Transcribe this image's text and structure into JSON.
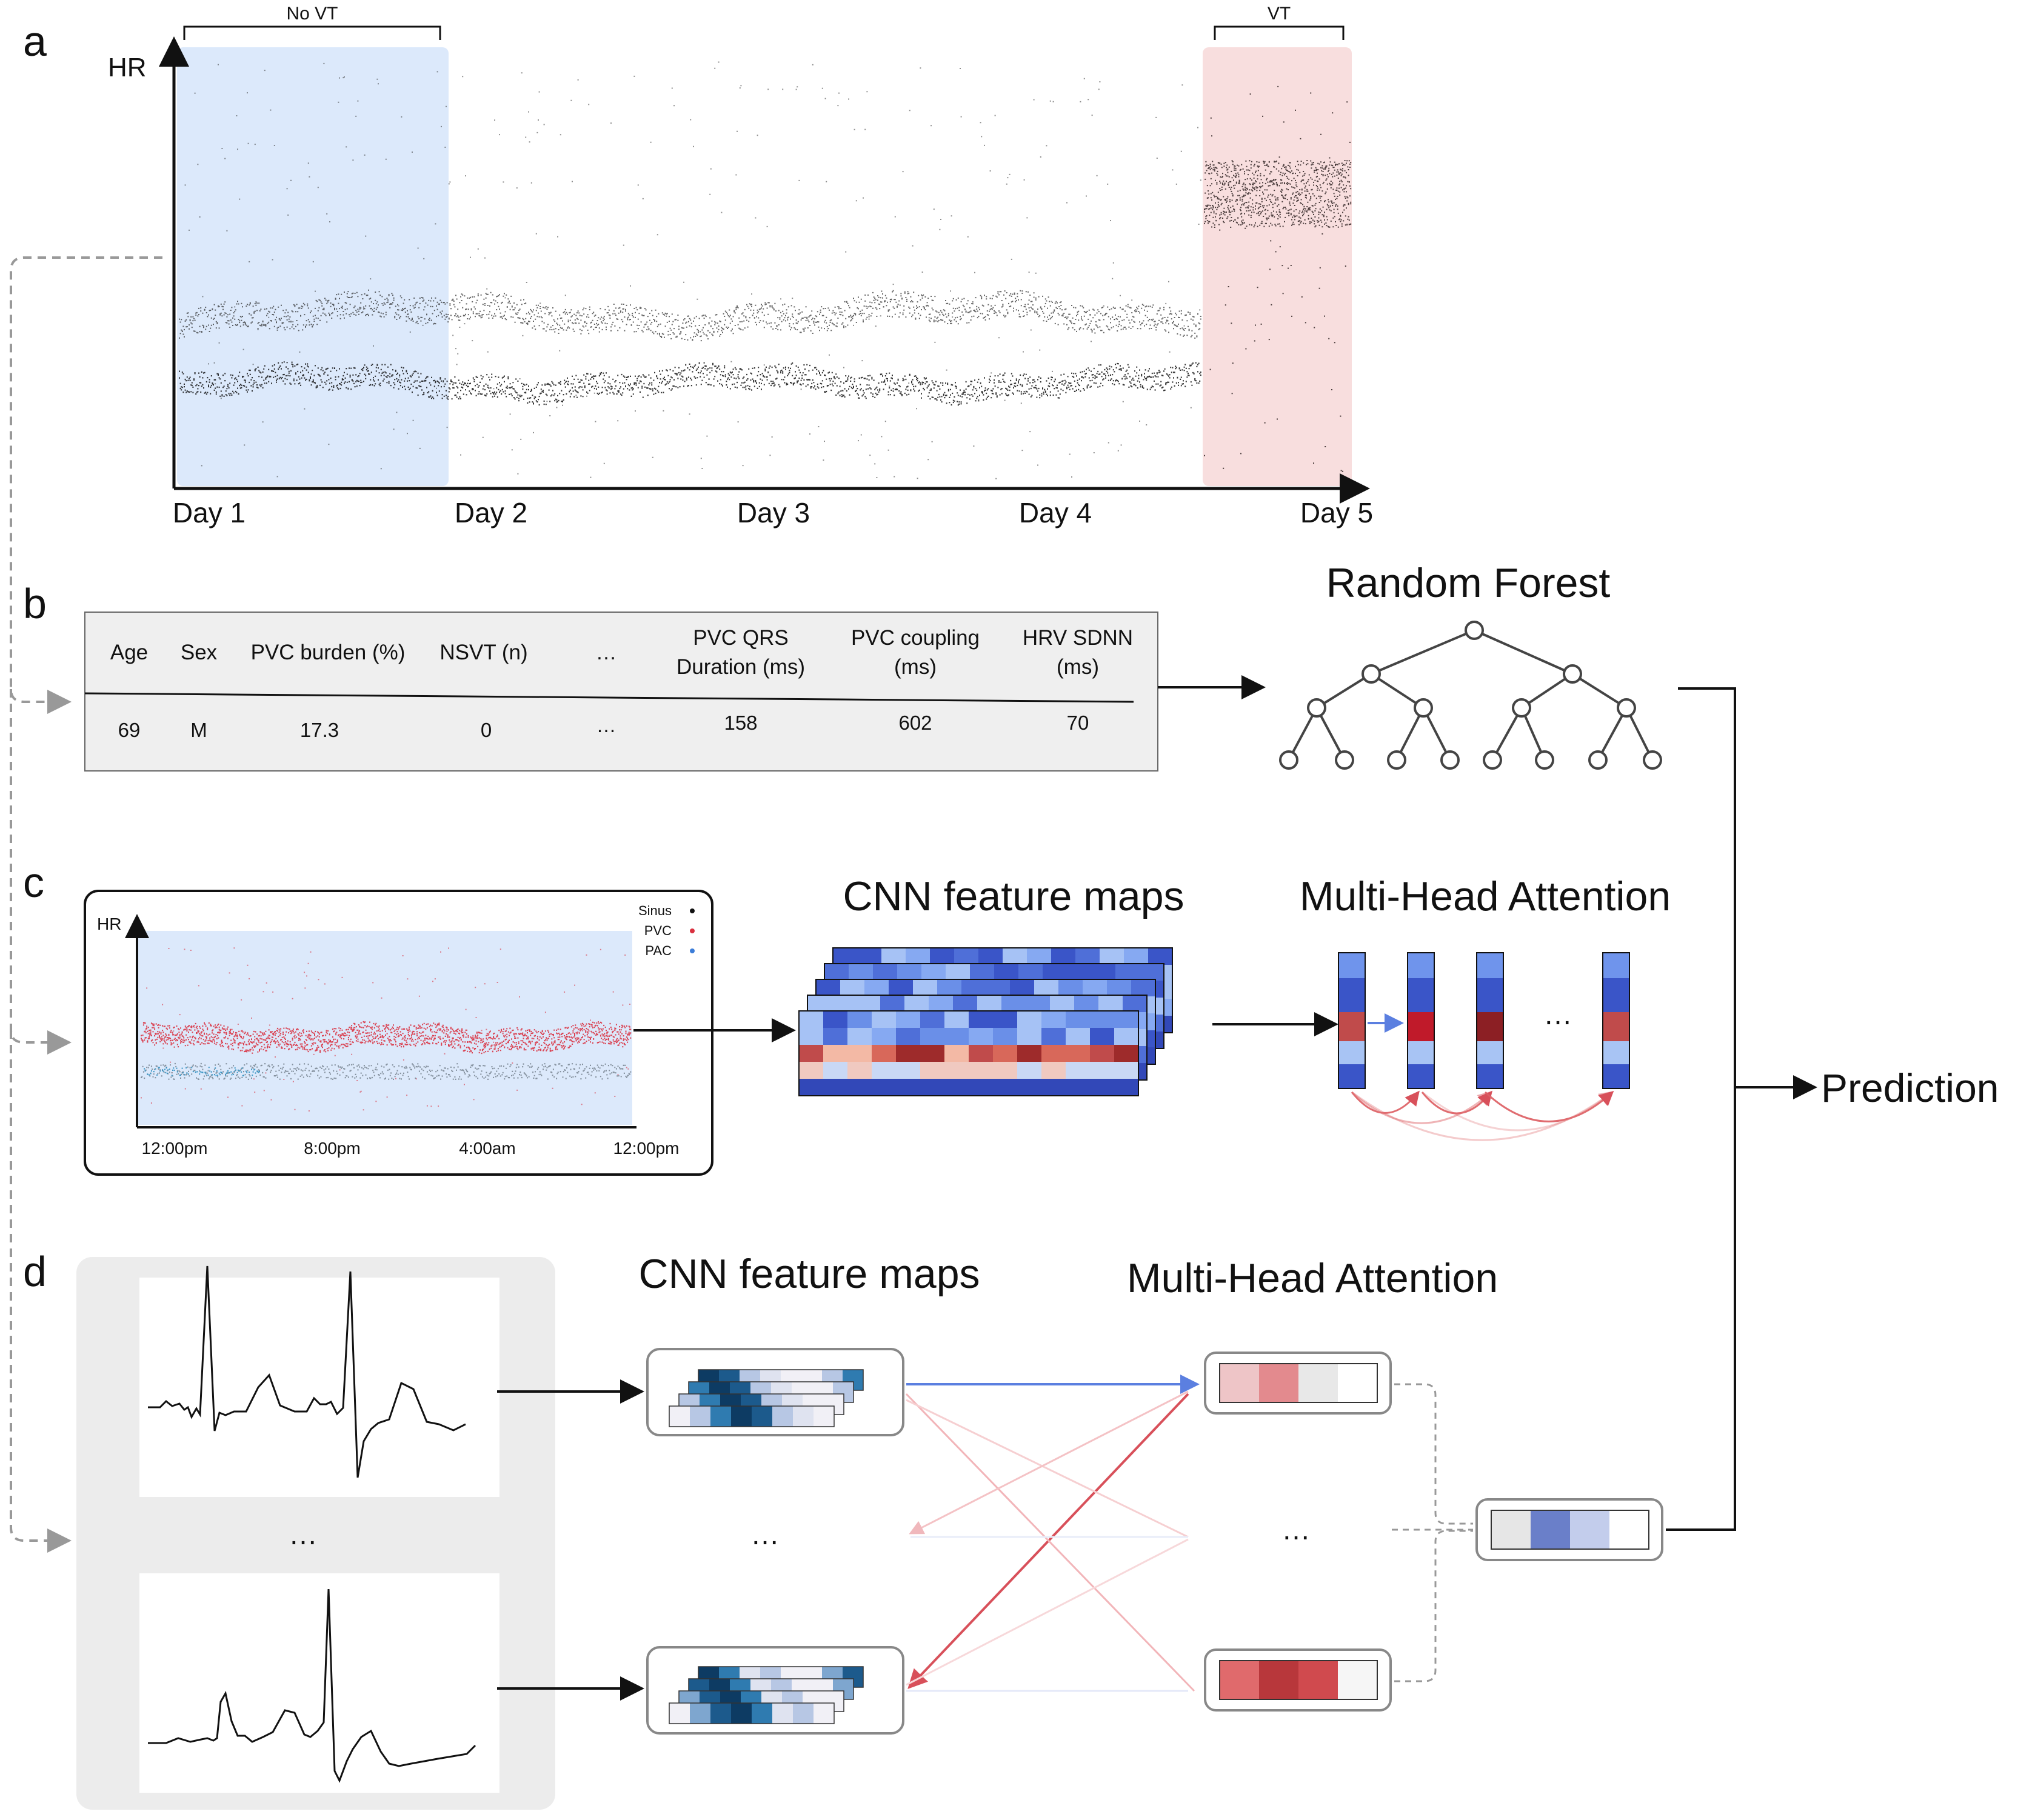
{
  "panel_a": {
    "letter": "a",
    "y_axis_label": "HR",
    "x_labels": [
      "Day 1",
      "Day 2",
      "Day 3",
      "Day 4",
      "Day 5"
    ],
    "bracket_no_vt": "No VT",
    "bracket_vt": "VT",
    "no_vt_color": "#dce9fb",
    "vt_color": "#f8dede"
  },
  "panel_b": {
    "letter": "b",
    "headers": [
      [
        "Age"
      ],
      [
        "Sex"
      ],
      [
        "PVC burden (%)"
      ],
      [
        "NSVT (n)"
      ],
      [
        "…"
      ],
      [
        "PVC QRS",
        "Duration (ms)"
      ],
      [
        "PVC coupling",
        "(ms)"
      ],
      [
        "HRV SDNN",
        "(ms)"
      ]
    ],
    "values": [
      "69",
      "M",
      "17.3",
      "0",
      "…",
      "158",
      "602",
      "70"
    ],
    "model_title": "Random Forest"
  },
  "panel_c": {
    "letter": "c",
    "y_axis_label": "HR",
    "legend": [
      {
        "label": "Sinus",
        "color": "#111111"
      },
      {
        "label": "PVC",
        "color": "#d9303f"
      },
      {
        "label": "PAC",
        "color": "#3b7dd8"
      }
    ],
    "x_labels": [
      "12:00pm",
      "8:00pm",
      "4:00am",
      "12:00pm"
    ],
    "cnn_title": "CNN feature maps",
    "attn_title": "Multi-Head Attention",
    "ellipsis": "…"
  },
  "panel_d": {
    "letter": "d",
    "cnn_title": "CNN feature maps",
    "attn_title": "Multi-Head Attention",
    "ellipsis_left": "…",
    "ellipsis_mid": "…",
    "ellipsis_right": "…"
  },
  "output": {
    "prediction_label": "Prediction"
  }
}
